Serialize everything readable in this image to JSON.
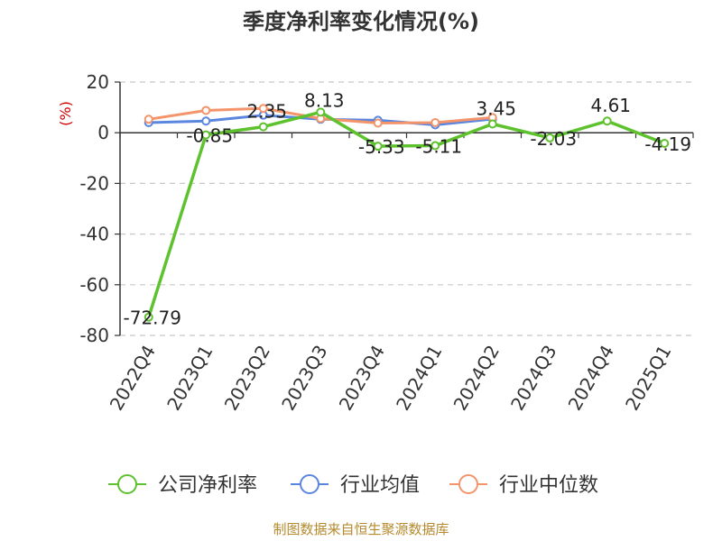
{
  "chart_data": {
    "type": "line",
    "title": "季度净利率变化情况(%)",
    "unit_label": "(%)",
    "categories": [
      "2022Q4",
      "2023Q1",
      "2023Q2",
      "2023Q3",
      "2023Q4",
      "2024Q1",
      "2024Q2",
      "2024Q3",
      "2024Q4",
      "2025Q1"
    ],
    "ylim": [
      -80,
      20
    ],
    "yticks": [
      20,
      0,
      -20,
      -40,
      -60,
      -80
    ],
    "grid": true,
    "legend_position": "bottom",
    "series": [
      {
        "name": "公司净利率",
        "color": "#5ec22e",
        "values": [
          -72.79,
          -0.85,
          2.35,
          8.13,
          -5.33,
          -5.11,
          3.45,
          -2.03,
          4.61,
          -4.19
        ],
        "labels": [
          "-72.79",
          "-0.85",
          "2.35",
          "8.13",
          "-5.33",
          "-5.11",
          "3.45",
          "-2.03",
          "4.61",
          "-4.19"
        ],
        "show_labels": true
      },
      {
        "name": "行业均值",
        "color": "#5a86e0",
        "values": [
          4.0,
          4.6,
          6.9,
          5.3,
          4.9,
          3.1,
          5.4,
          null,
          null,
          null
        ],
        "show_labels": false
      },
      {
        "name": "行业中位数",
        "color": "#f4946b",
        "values": [
          5.3,
          8.8,
          9.6,
          5.6,
          3.8,
          4.0,
          6.0,
          null,
          null,
          null
        ],
        "show_labels": false
      }
    ]
  },
  "source_text": "制图数据来自恒生聚源数据库"
}
